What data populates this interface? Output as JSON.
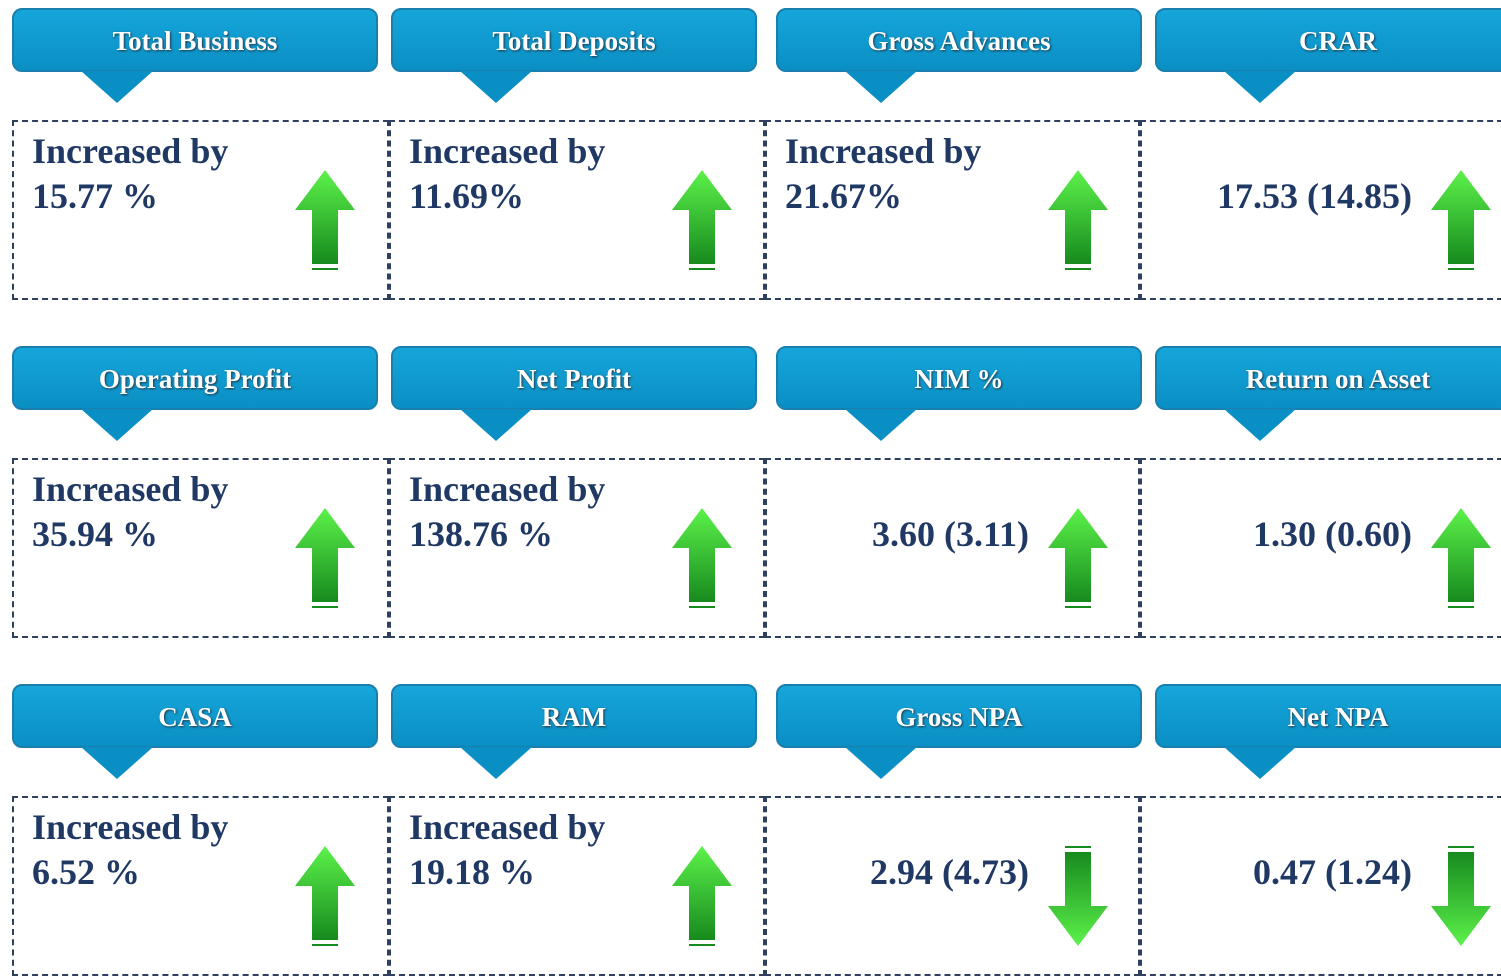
{
  "cards": [
    {
      "header": "Total Business",
      "lines": [
        "Increased by",
        "15.77 %"
      ],
      "trend": "up"
    },
    {
      "header": "Total Deposits",
      "lines": [
        "Increased by",
        "11.69%"
      ],
      "trend": "up"
    },
    {
      "header": "Gross Advances",
      "lines": [
        "Increased by",
        "21.67%"
      ],
      "trend": "up"
    },
    {
      "header": "CRAR",
      "lines": [
        "17.53 (14.85)"
      ],
      "trend": "up"
    },
    {
      "header": "Operating Profit",
      "lines": [
        "Increased by",
        "35.94 %"
      ],
      "trend": "up"
    },
    {
      "header": "Net Profit",
      "lines": [
        "Increased by",
        "138.76 %"
      ],
      "trend": "up"
    },
    {
      "header": "NIM %",
      "lines": [
        "3.60 (3.11)"
      ],
      "trend": "up"
    },
    {
      "header": "Return on Asset",
      "lines": [
        "1.30 (0.60)"
      ],
      "trend": "up"
    },
    {
      "header": "CASA",
      "lines": [
        "Increased by",
        "6.52 %"
      ],
      "trend": "up"
    },
    {
      "header": "RAM",
      "lines": [
        "Increased by",
        "19.18 %"
      ],
      "trend": "up"
    },
    {
      "header": "Gross NPA",
      "lines": [
        "2.94 (4.73)"
      ],
      "trend": "down"
    },
    {
      "header": "Net NPA",
      "lines": [
        "0.47 (1.24)"
      ],
      "trend": "down"
    }
  ]
}
